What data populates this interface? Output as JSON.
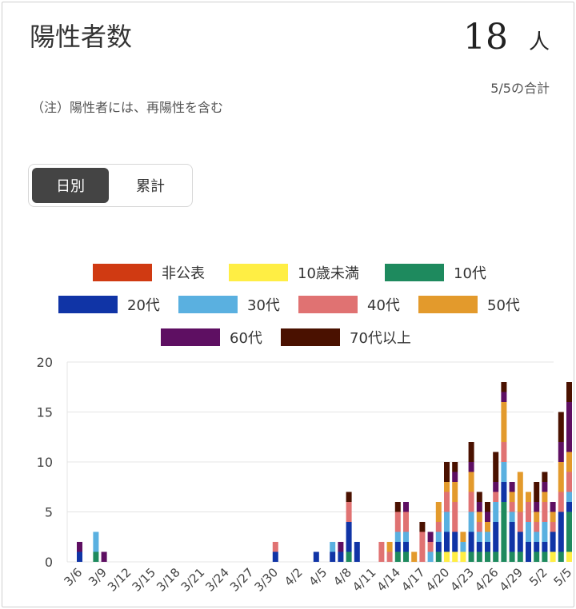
{
  "header": {
    "title": "陽性者数",
    "count": "18",
    "unit": "人",
    "subtitle": "5/5の合計",
    "note": "（注）陽性者には、再陽性を含む"
  },
  "toggle": {
    "daily": "日別",
    "cumulative": "累計",
    "selected": "daily"
  },
  "chart_data": {
    "type": "bar",
    "stacked": true,
    "ylim": [
      0,
      20
    ],
    "yticks": [
      0,
      5,
      10,
      15,
      20
    ],
    "grid": true,
    "legend_position": "top",
    "x": [
      "3/6",
      "3/7",
      "3/8",
      "3/9",
      "3/10",
      "3/11",
      "3/12",
      "3/13",
      "3/14",
      "3/15",
      "3/16",
      "3/17",
      "3/18",
      "3/19",
      "3/20",
      "3/21",
      "3/22",
      "3/23",
      "3/24",
      "3/25",
      "3/26",
      "3/27",
      "3/28",
      "3/29",
      "3/30",
      "3/31",
      "4/1",
      "4/2",
      "4/3",
      "4/4",
      "4/5",
      "4/6",
      "4/7",
      "4/8",
      "4/9",
      "4/10",
      "4/11",
      "4/12",
      "4/13",
      "4/14",
      "4/15",
      "4/16",
      "4/17",
      "4/18",
      "4/19",
      "4/20",
      "4/21",
      "4/22",
      "4/23",
      "4/24",
      "4/25",
      "4/26",
      "4/27",
      "4/28",
      "4/29",
      "4/30",
      "5/1",
      "5/2",
      "5/3",
      "5/4",
      "5/5"
    ],
    "xticklabels": [
      "3/6",
      "3/9",
      "3/12",
      "3/15",
      "3/18",
      "3/21",
      "3/24",
      "3/27",
      "3/30",
      "4/2",
      "4/5",
      "4/8",
      "4/11",
      "4/14",
      "4/17",
      "4/20",
      "4/23",
      "4/26",
      "4/29",
      "5/2",
      "5/5"
    ],
    "series": [
      {
        "name": "非公表",
        "color": "#d03a12",
        "values": [
          0,
          0,
          0,
          0,
          0,
          0,
          0,
          0,
          0,
          0,
          0,
          0,
          0,
          0,
          0,
          0,
          0,
          0,
          0,
          0,
          0,
          0,
          0,
          0,
          0,
          0,
          0,
          0,
          0,
          0,
          0,
          0,
          0,
          0,
          0,
          0,
          0,
          0,
          0,
          0,
          0,
          0,
          0,
          0,
          0,
          0,
          0,
          0,
          0,
          0,
          0,
          0,
          0,
          0,
          0,
          0,
          0,
          0,
          0,
          0,
          0
        ]
      },
      {
        "name": "10歳未満",
        "color": "#ffee44",
        "values": [
          0,
          0,
          0,
          0,
          0,
          0,
          0,
          0,
          0,
          0,
          0,
          0,
          0,
          0,
          0,
          0,
          0,
          0,
          0,
          0,
          0,
          0,
          0,
          0,
          0,
          0,
          0,
          0,
          0,
          0,
          0,
          0,
          0,
          0,
          0,
          0,
          0,
          0,
          0,
          0,
          0,
          0,
          0,
          0,
          0,
          1,
          1,
          1,
          0,
          0,
          0,
          0,
          0,
          0,
          0,
          0,
          0,
          0,
          1,
          0,
          1
        ]
      },
      {
        "name": "10代",
        "color": "#1e8a5e",
        "values": [
          0,
          0,
          1,
          0,
          0,
          0,
          0,
          0,
          0,
          0,
          0,
          0,
          0,
          0,
          0,
          0,
          0,
          0,
          0,
          0,
          0,
          0,
          0,
          0,
          0,
          0,
          0,
          0,
          0,
          0,
          0,
          0,
          0,
          1,
          0,
          0,
          0,
          0,
          0,
          1,
          1,
          0,
          0,
          0,
          1,
          0,
          0,
          0,
          1,
          1,
          1,
          1,
          6,
          1,
          1,
          0,
          1,
          1,
          0,
          1,
          4
        ]
      },
      {
        "name": "20代",
        "color": "#1034a6",
        "values": [
          1,
          0,
          0,
          0,
          0,
          0,
          0,
          0,
          0,
          0,
          0,
          0,
          0,
          0,
          0,
          0,
          0,
          0,
          0,
          0,
          0,
          0,
          0,
          0,
          1,
          0,
          0,
          0,
          0,
          1,
          0,
          1,
          1,
          3,
          2,
          0,
          0,
          0,
          0,
          1,
          1,
          0,
          0,
          0,
          1,
          2,
          2,
          0,
          2,
          1,
          1,
          3,
          2,
          3,
          2,
          2,
          1,
          1,
          2,
          4,
          1
        ]
      },
      {
        "name": "30代",
        "color": "#5ab0e0",
        "values": [
          0,
          0,
          2,
          0,
          0,
          0,
          0,
          0,
          0,
          0,
          0,
          0,
          0,
          0,
          0,
          0,
          0,
          0,
          0,
          0,
          0,
          0,
          0,
          0,
          0,
          0,
          0,
          0,
          0,
          0,
          0,
          1,
          0,
          0,
          0,
          0,
          0,
          0,
          0,
          1,
          1,
          0,
          0,
          1,
          1,
          2,
          0,
          1,
          2,
          1,
          1,
          2,
          2,
          1,
          0,
          2,
          1,
          2,
          0,
          0,
          1
        ]
      },
      {
        "name": "40代",
        "color": "#e07272",
        "values": [
          0,
          0,
          0,
          0,
          0,
          0,
          0,
          0,
          0,
          0,
          0,
          0,
          0,
          0,
          0,
          0,
          0,
          0,
          0,
          0,
          0,
          0,
          0,
          0,
          1,
          0,
          0,
          0,
          0,
          0,
          0,
          0,
          0,
          2,
          0,
          0,
          0,
          2,
          1,
          2,
          2,
          0,
          3,
          1,
          1,
          2,
          3,
          0,
          2,
          1,
          0,
          1,
          2,
          1,
          2,
          2,
          1,
          2,
          1,
          2,
          2
        ]
      },
      {
        "name": "50代",
        "color": "#e39a2c",
        "values": [
          0,
          0,
          0,
          0,
          0,
          0,
          0,
          0,
          0,
          0,
          0,
          0,
          0,
          0,
          0,
          0,
          0,
          0,
          0,
          0,
          0,
          0,
          0,
          0,
          0,
          0,
          0,
          0,
          0,
          0,
          0,
          0,
          0,
          0,
          0,
          0,
          0,
          0,
          1,
          0,
          0,
          1,
          0,
          0,
          2,
          1,
          2,
          1,
          2,
          1,
          1,
          0,
          4,
          1,
          4,
          1,
          1,
          1,
          1,
          3,
          2
        ]
      },
      {
        "name": "60代",
        "color": "#5e0f62",
        "values": [
          1,
          0,
          0,
          1,
          0,
          0,
          0,
          0,
          0,
          0,
          0,
          0,
          0,
          0,
          0,
          0,
          0,
          0,
          0,
          0,
          0,
          0,
          0,
          0,
          0,
          0,
          0,
          0,
          0,
          0,
          0,
          0,
          1,
          0,
          0,
          0,
          0,
          0,
          0,
          0,
          1,
          0,
          0,
          1,
          0,
          0,
          1,
          0,
          1,
          1,
          1,
          1,
          1,
          1,
          0,
          0,
          1,
          1,
          1,
          2,
          5
        ]
      },
      {
        "name": "70代以上",
        "color": "#4a1100",
        "values": [
          0,
          0,
          0,
          0,
          0,
          0,
          0,
          0,
          0,
          0,
          0,
          0,
          0,
          0,
          0,
          0,
          0,
          0,
          0,
          0,
          0,
          0,
          0,
          0,
          0,
          0,
          0,
          0,
          0,
          0,
          0,
          0,
          0,
          1,
          0,
          0,
          0,
          0,
          0,
          1,
          0,
          0,
          1,
          0,
          0,
          2,
          1,
          0,
          2,
          1,
          1,
          3,
          1,
          0,
          0,
          0,
          2,
          1,
          0,
          3,
          2
        ]
      }
    ]
  }
}
